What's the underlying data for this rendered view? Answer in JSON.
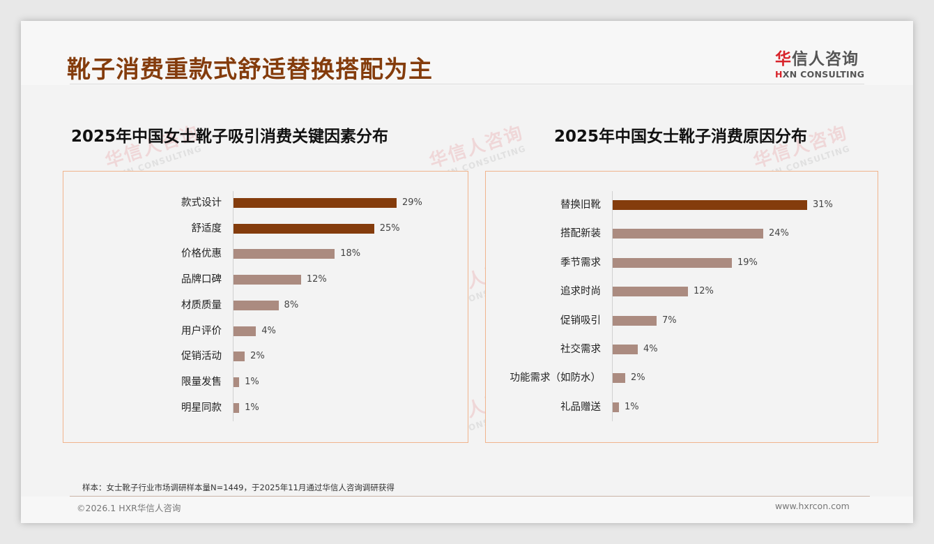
{
  "page": {
    "title": "靴子消费重款式舒适替换搭配为主",
    "logo": {
      "cn_accent": "华",
      "cn_rest": "信人咨询",
      "en_accent": "H",
      "en_rest": "XN CONSULTING"
    },
    "watermark": {
      "cn": "华信人咨询",
      "en": "HXN CONSULTING"
    },
    "note": "样本：女士靴子行业市场调研样本量N=1449，于2025年11月通过华信人咨询调研获得",
    "copyright": "©2026.1 HXR华信人咨询",
    "website": "www.hxrcon.com"
  },
  "colors": {
    "highlight": "#843c0c",
    "normal": "#ab8b80",
    "panel_border": "#f0b48c",
    "title": "#843c0c"
  },
  "chart_data": [
    {
      "type": "bar",
      "orientation": "horizontal",
      "title": "2025年中国女士靴子吸引消费关键因素分布",
      "categories": [
        "款式设计",
        "舒适度",
        "价格优惠",
        "品牌口碑",
        "材质质量",
        "用户评价",
        "促销活动",
        "限量发售",
        "明星同款"
      ],
      "values": [
        29,
        25,
        18,
        12,
        8,
        4,
        2,
        1,
        1
      ],
      "labels": [
        "29%",
        "25%",
        "18%",
        "12%",
        "8%",
        "4%",
        "2%",
        "1%",
        "1%"
      ],
      "highlight": [
        true,
        true,
        false,
        false,
        false,
        false,
        false,
        false,
        false
      ],
      "unit": "%",
      "xlabel": "",
      "ylabel": "",
      "grid": false,
      "legend": false
    },
    {
      "type": "bar",
      "orientation": "horizontal",
      "title": "2025年中国女士靴子消费原因分布",
      "categories": [
        "替换旧靴",
        "搭配新装",
        "季节需求",
        "追求时尚",
        "促销吸引",
        "社交需求",
        "功能需求（如防水）",
        "礼品赠送"
      ],
      "values": [
        31,
        24,
        19,
        12,
        7,
        4,
        2,
        1
      ],
      "labels": [
        "31%",
        "24%",
        "19%",
        "12%",
        "7%",
        "4%",
        "2%",
        "1%"
      ],
      "highlight": [
        true,
        false,
        false,
        false,
        false,
        false,
        false,
        false
      ],
      "unit": "%",
      "xlabel": "",
      "ylabel": "",
      "grid": false,
      "legend": false
    }
  ]
}
